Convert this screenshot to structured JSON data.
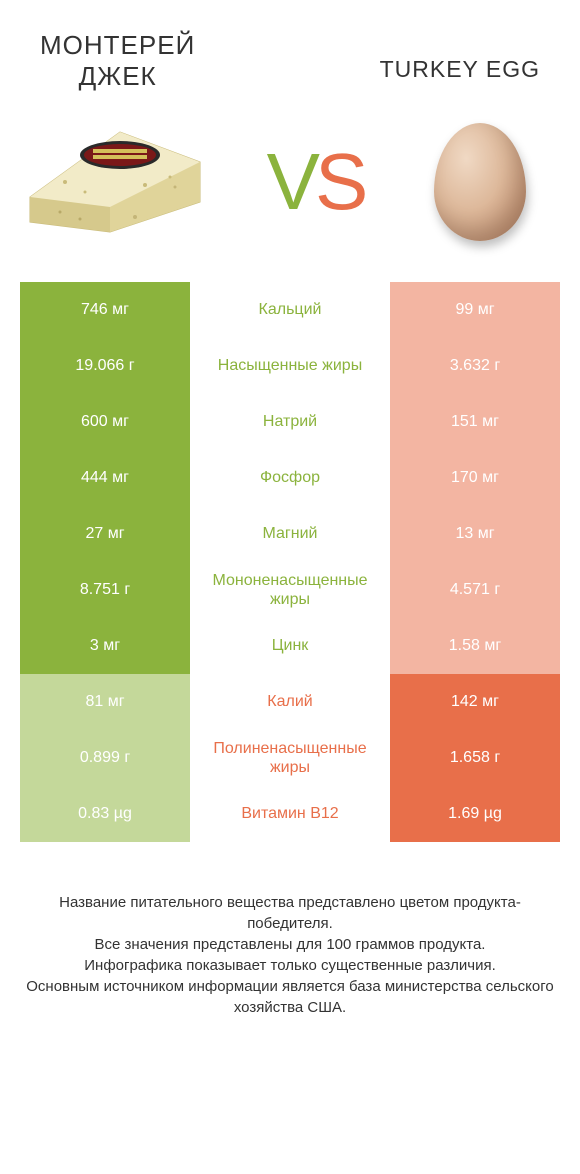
{
  "header": {
    "left_title_1": "МОНТЕРЕЙ",
    "left_title_2": "ДЖЕК",
    "right_title": "TURKEY EGG"
  },
  "vs": {
    "v": "V",
    "s": "S"
  },
  "table": {
    "type": "comparison-table",
    "colors": {
      "green_win": "#8bb33d",
      "green_lose": "#c4d89a",
      "orange_win": "#e86f4a",
      "orange_lose": "#f3b5a2",
      "text_white": "#ffffff",
      "background": "#ffffff"
    },
    "columns": [
      "left_value",
      "nutrient",
      "right_value"
    ],
    "rows": [
      {
        "left": "746 мг",
        "mid": "Кальций",
        "right": "99 мг",
        "winner": "left"
      },
      {
        "left": "19.066 г",
        "mid": "Насыщенные жиры",
        "right": "3.632 г",
        "winner": "left"
      },
      {
        "left": "600 мг",
        "mid": "Натрий",
        "right": "151 мг",
        "winner": "left"
      },
      {
        "left": "444 мг",
        "mid": "Фосфор",
        "right": "170 мг",
        "winner": "left"
      },
      {
        "left": "27 мг",
        "mid": "Магний",
        "right": "13 мг",
        "winner": "left"
      },
      {
        "left": "8.751 г",
        "mid": "Мононенасыщенные жиры",
        "right": "4.571 г",
        "winner": "left"
      },
      {
        "left": "3 мг",
        "mid": "Цинк",
        "right": "1.58 мг",
        "winner": "left"
      },
      {
        "left": "81 мг",
        "mid": "Калий",
        "right": "142 мг",
        "winner": "right"
      },
      {
        "left": "0.899 г",
        "mid": "Полиненасыщенные жиры",
        "right": "1.658 г",
        "winner": "right"
      },
      {
        "left": "0.83 µg",
        "mid": "Витамин B12",
        "right": "1.69 µg",
        "winner": "right"
      }
    ]
  },
  "footer": {
    "line1": "Название питательного вещества представлено цветом продукта-победителя.",
    "line2": "Все значения представлены для 100 граммов продукта.",
    "line3": "Инфографика показывает только существенные различия.",
    "line4": "Основным источником информации является база министерства сельского хозяйства США."
  }
}
